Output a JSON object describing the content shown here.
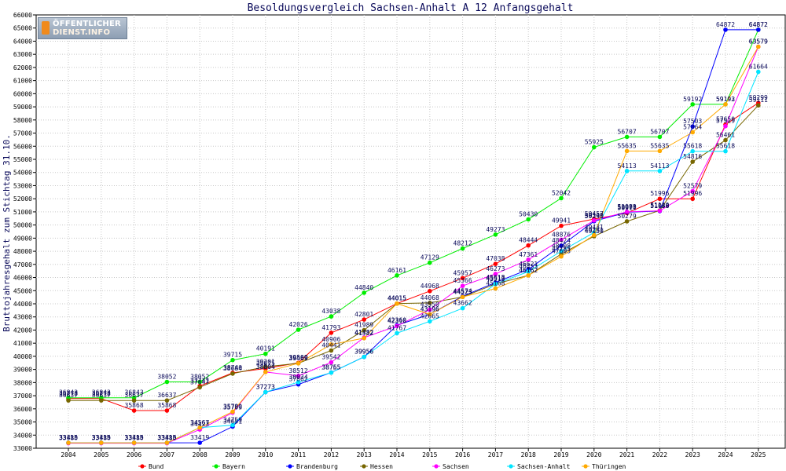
{
  "chart_data": {
    "type": "line",
    "title": "Besoldungsvergleich Sachsen-Anhalt A 12 Anfangsgehalt",
    "ylabel": "Bruttojahresgehalt zum Stichtag 31.10.",
    "xlabel": "",
    "ylim": [
      33000,
      66000
    ],
    "ystep": 1000,
    "categories": [
      "2004",
      "2005",
      "2006",
      "2007",
      "2008",
      "2009",
      "2010",
      "2011",
      "2012",
      "2013",
      "2014",
      "2015",
      "2016",
      "2017",
      "2018",
      "2019",
      "2020",
      "2021",
      "2022",
      "2023",
      "2024",
      "2025"
    ],
    "grid": true,
    "legend_position": "bottom",
    "series": [
      {
        "name": "Bund",
        "color": "#ff0000",
        "values": [
          36778,
          36778,
          35868,
          35868,
          37741,
          38740,
          39075,
          39509,
          41793,
          42801,
          44015,
          44968,
          45957,
          47038,
          48444,
          49941,
          50457,
          50911,
          51996,
          51996,
          57650,
          59299
        ]
      },
      {
        "name": "Bayern",
        "color": "#00ee00",
        "values": [
          36843,
          36843,
          36843,
          38052,
          38052,
          39715,
          40191,
          42026,
          43038,
          44840,
          46161,
          47129,
          48212,
          49273,
          50430,
          52042,
          55925,
          56707,
          56707,
          59192,
          59192,
          64872
        ]
      },
      {
        "name": "Brandenburg",
        "color": "#0000ff",
        "values": [
          33415,
          33415,
          33415,
          33415,
          33419,
          34651,
          37273,
          37862,
          38765,
          39956,
          42360,
          43196,
          44574,
          45618,
          46621,
          48424,
          50290,
          50970,
          51058,
          57503,
          64872,
          64872
        ]
      },
      {
        "name": "Hessen",
        "color": "#776600",
        "values": [
          36637,
          36637,
          36637,
          36637,
          37647,
          38684,
          39201,
          39469,
          40441,
          41989,
          44015,
          44068,
          44523,
          45513,
          46162,
          47785,
          49150,
          50279,
          51110,
          54816,
          56461,
          59111
        ]
      },
      {
        "name": "Sachsen",
        "color": "#ff00ff",
        "values": [
          33380,
          33380,
          33380,
          33380,
          34423,
          35709,
          38804,
          38512,
          39542,
          41432,
          42310,
          43550,
          45366,
          46273,
          47361,
          48876,
          50349,
          51003,
          51086,
          52579,
          57529,
          63579
        ]
      },
      {
        "name": "Sachsen-Anhalt",
        "color": "#00e5ff",
        "values": [
          33415,
          33415,
          33415,
          33415,
          34567,
          34759,
          37273,
          38034,
          38755,
          39956,
          41767,
          42665,
          43662,
          45513,
          46453,
          48008,
          49431,
          54113,
          54113,
          55618,
          55618,
          61664
        ]
      },
      {
        "name": "Thüringen",
        "color": "#ffaa00",
        "values": [
          33415,
          33415,
          33415,
          33415,
          34567,
          35780,
          38804,
          39469,
          40906,
          41382,
          44015,
          43196,
          44523,
          45168,
          46162,
          47603,
          49231,
          55635,
          55635,
          57064,
          59193,
          63579
        ]
      }
    ]
  },
  "logo": {
    "line1": "ÖFFENTLICHER",
    "line2": "DIENST.INFO"
  }
}
